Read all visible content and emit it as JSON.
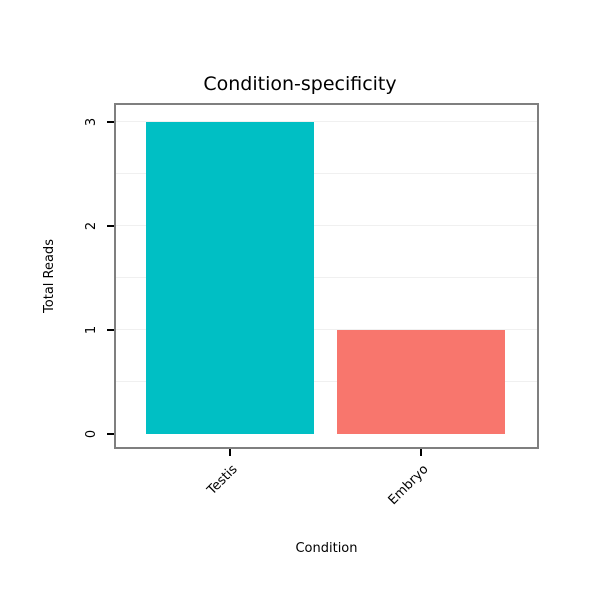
{
  "chart_data": {
    "type": "bar",
    "title": "Condition-specificity",
    "xlabel": "Condition",
    "ylabel": "Total Reads",
    "categories": [
      "Testis",
      "Embryo"
    ],
    "values": [
      3,
      1
    ],
    "bar_colors": [
      "#00BFC4",
      "#F8766D"
    ],
    "yticks": [
      0,
      1,
      2,
      3
    ],
    "ylim": [
      0,
      3
    ],
    "grid": true,
    "gridline_step": 0.5,
    "gridline_color": "#f0f0f0",
    "panel_border_color": "#7f7f7f",
    "background_color": "#ffffff",
    "legend": "none"
  }
}
